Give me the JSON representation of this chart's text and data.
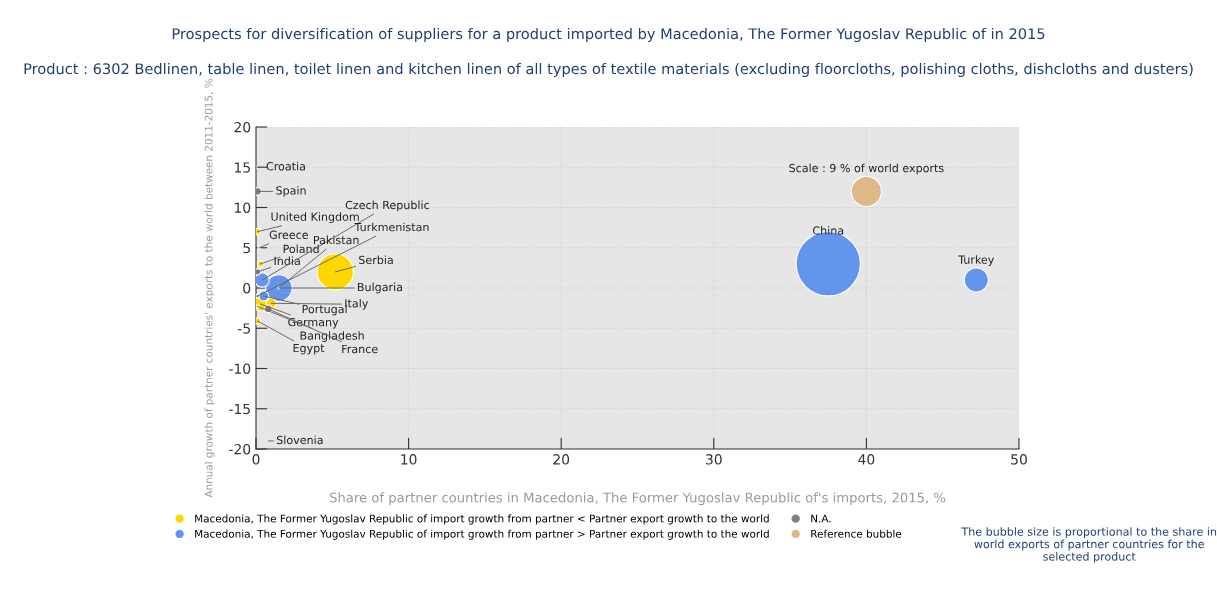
{
  "chart_data": {
    "type": "bubble",
    "title": "Prospects for diversification of suppliers for a product imported by Macedonia, The Former Yugoslav Republic of in 2015",
    "subtitle": "Product : 6302 Bedlinen, table linen, toilet linen and kitchen linen of all types of textile materials (excluding floorcloths, polishing cloths, dishcloths and dusters)",
    "xlabel": "Share of partner countries in Macedonia, The Former Yugoslav Republic of's imports, 2015, %",
    "ylabel": "Annual growth of partner countries' exports to the world between 2011-2015, %",
    "series": [
      {
        "name": "Macedonia, The Former Yugoslav Republic of import growth from partner < Partner export growth to the world",
        "color": "#ffd700",
        "x": [
          0.1,
          0.2,
          0.3,
          1.5,
          5.2,
          1.0,
          0.3,
          0.1,
          0.1
        ],
        "values": [
          7,
          5,
          3,
          0,
          2,
          -1.9,
          -2,
          -2.3,
          -4.1
        ],
        "sizes": [
          0.01,
          0.001,
          0.01,
          0.001,
          0.32,
          0.025,
          0.05,
          0.003,
          0.01
        ]
      },
      {
        "name": "Macedonia, The Former Yugoslav Republic of import growth from partner > Partner export growth to the world",
        "color": "#6495ed",
        "x": [
          0.4,
          1.5,
          0.5,
          37.5,
          47.2
        ],
        "values": [
          1,
          0,
          -1,
          3,
          1
        ],
        "sizes": [
          0.05,
          0.17,
          0.025,
          1,
          0.14
        ]
      },
      {
        "name": "N.A.",
        "color": "#808080",
        "x": [
          0,
          0.1,
          0.1,
          0.1,
          0.8,
          0.8
        ],
        "values": [
          15,
          12,
          2,
          -1,
          -2.6,
          -19
        ],
        "sizes": [
          0.001,
          0.015,
          0.01,
          0.003,
          0.015,
          0.001
        ]
      },
      {
        "name": "Reference bubble",
        "color": "#deb887",
        "x": [
          40
        ],
        "values": [
          12
        ],
        "sizes": [
          0.22
        ]
      }
    ],
    "annotations": [
      {
        "text": "Croatia",
        "x": 0,
        "y": 15
      },
      {
        "text": "Spain",
        "x": 0.1,
        "y": 12
      },
      {
        "text": "United Kingdom",
        "x": 0.1,
        "y": 7
      },
      {
        "text": "Greece",
        "x": 0.2,
        "y": 5
      },
      {
        "text": "Poland",
        "x": 0.3,
        "y": 3
      },
      {
        "text": "India",
        "x": 0.1,
        "y": 2
      },
      {
        "text": "Czech Republic",
        "x": 0.4,
        "y": 1
      },
      {
        "text": "Pakistan",
        "x": 1.5,
        "y": 0
      },
      {
        "text": "Turkmenistan",
        "x": 0.1,
        "y": -1
      },
      {
        "text": "Serbia",
        "x": 5.2,
        "y": 2
      },
      {
        "text": "Bulgaria",
        "x": 1.5,
        "y": 0
      },
      {
        "text": "Portugal",
        "x": 0.5,
        "y": -1
      },
      {
        "text": "Italy",
        "x": 1.0,
        "y": -1.9
      },
      {
        "text": "Germany",
        "x": 0.3,
        "y": -2
      },
      {
        "text": "Bangladesh",
        "x": 0.1,
        "y": -2.3
      },
      {
        "text": "France",
        "x": 0.8,
        "y": -2.6
      },
      {
        "text": "Egypt",
        "x": 0.1,
        "y": -4.1
      },
      {
        "text": "Slovenia",
        "x": 0.8,
        "y": -19
      },
      {
        "text": "China",
        "x": 37.5,
        "y": 3
      },
      {
        "text": "Turkey",
        "x": 47.2,
        "y": 1
      },
      {
        "text": "Scale : 9 % of world exports",
        "x": 40,
        "y": 12
      },
      "The bubble size is proportional to the share in world exports of partner countries for the selected product"
    ],
    "xlim": [
      0,
      50
    ],
    "xticks": [
      0,
      10,
      20,
      30,
      40,
      50
    ],
    "ylim": [
      -20,
      20
    ],
    "yticks": [
      -20,
      -15,
      -10,
      -5,
      0,
      5,
      10,
      15,
      20
    ],
    "grid": true,
    "legend": "bottom"
  }
}
